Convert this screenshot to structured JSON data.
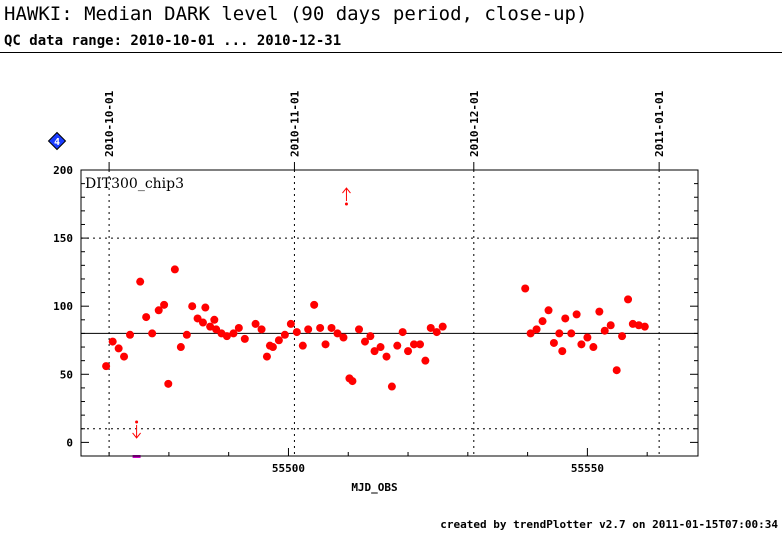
{
  "header": {
    "title": "HAWKI: Median DARK level (90 days period, close-up)",
    "subtitle": "QC data range: 2010-10-01 ... 2010-12-31"
  },
  "footer": {
    "text": "created by trendPlotter v2.7 on 2011-01-15T07:00:34"
  },
  "colors": {
    "points": "#ff0000",
    "reference": "#000000",
    "badge": "#1a3cff",
    "marker": "#cc00cc"
  },
  "chart_data": {
    "type": "scatter",
    "panel_label": "DIT300_chip3",
    "xlabel": "MJD_OBS",
    "ylabel": "",
    "xlim": [
      55465.3,
      55568.5
    ],
    "ylim": [
      -10,
      200
    ],
    "x_ticks": [
      55500,
      55550
    ],
    "y_ticks": [
      0,
      50,
      100,
      150,
      200
    ],
    "top_date_ticks": [
      {
        "label": "2010-10-01",
        "mjd": 55470
      },
      {
        "label": "2010-11-01",
        "mjd": 55501
      },
      {
        "label": "2010-12-01",
        "mjd": 55531
      },
      {
        "label": "2011-01-01",
        "mjd": 55562
      }
    ],
    "reference_line": 80,
    "dotted_h_lines": [
      10,
      150
    ],
    "badge_label": "4",
    "grid": "dotted",
    "series": [
      {
        "points": [
          [
            55469.5,
            56
          ],
          [
            55470.6,
            74
          ],
          [
            55471.6,
            69
          ],
          [
            55472.5,
            63
          ],
          [
            55473.5,
            79
          ],
          [
            55475.2,
            118
          ],
          [
            55476.2,
            92
          ],
          [
            55477.2,
            80
          ],
          [
            55478.3,
            97
          ],
          [
            55479.2,
            101
          ],
          [
            55479.9,
            43
          ],
          [
            55481.0,
            127
          ],
          [
            55482.0,
            70
          ],
          [
            55483.0,
            79
          ],
          [
            55483.9,
            100
          ],
          [
            55484.8,
            91
          ],
          [
            55485.7,
            88
          ],
          [
            55486.1,
            99
          ],
          [
            55486.9,
            85
          ],
          [
            55487.6,
            90
          ],
          [
            55487.9,
            83
          ],
          [
            55488.8,
            80
          ],
          [
            55489.7,
            78
          ],
          [
            55490.8,
            80
          ],
          [
            55491.7,
            84
          ],
          [
            55492.7,
            76
          ],
          [
            55494.5,
            87
          ],
          [
            55495.5,
            83
          ],
          [
            55496.4,
            63
          ],
          [
            55496.9,
            71
          ],
          [
            55497.4,
            70
          ],
          [
            55498.4,
            75
          ],
          [
            55499.4,
            79
          ],
          [
            55500.4,
            87
          ],
          [
            55501.4,
            81
          ],
          [
            55502.4,
            71
          ],
          [
            55503.3,
            83
          ],
          [
            55504.3,
            101
          ],
          [
            55505.3,
            84
          ],
          [
            55506.2,
            72
          ],
          [
            55507.2,
            84
          ],
          [
            55508.2,
            80
          ],
          [
            55509.2,
            77
          ],
          [
            55510.2,
            47
          ],
          [
            55510.7,
            45
          ],
          [
            55511.8,
            83
          ],
          [
            55512.8,
            74
          ],
          [
            55513.7,
            78
          ],
          [
            55514.4,
            67
          ],
          [
            55515.4,
            70
          ],
          [
            55516.4,
            63
          ],
          [
            55517.3,
            41
          ],
          [
            55518.2,
            71
          ],
          [
            55519.1,
            81
          ],
          [
            55520.0,
            67
          ],
          [
            55521.0,
            72
          ],
          [
            55522.0,
            72
          ],
          [
            55522.9,
            60
          ],
          [
            55523.8,
            84
          ],
          [
            55524.8,
            81
          ],
          [
            55525.8,
            85
          ],
          [
            55539.6,
            113
          ],
          [
            55540.5,
            80
          ],
          [
            55541.5,
            83
          ],
          [
            55542.5,
            89
          ],
          [
            55543.5,
            97
          ],
          [
            55544.4,
            73
          ],
          [
            55545.3,
            80
          ],
          [
            55545.8,
            67
          ],
          [
            55546.3,
            91
          ],
          [
            55547.3,
            80
          ],
          [
            55548.2,
            94
          ],
          [
            55549.0,
            72
          ],
          [
            55550.0,
            77
          ],
          [
            55551.0,
            70
          ],
          [
            55552.0,
            96
          ],
          [
            55552.9,
            82
          ],
          [
            55553.9,
            86
          ],
          [
            55554.9,
            53
          ],
          [
            55555.8,
            78
          ],
          [
            55556.8,
            105
          ],
          [
            55557.6,
            87
          ],
          [
            55558.6,
            86
          ],
          [
            55559.6,
            85
          ]
        ]
      }
    ],
    "outliers": [
      {
        "x": 55509.7,
        "y": 175,
        "direction": "up"
      },
      {
        "x": 55474.6,
        "y": 15,
        "direction": "down"
      }
    ]
  }
}
